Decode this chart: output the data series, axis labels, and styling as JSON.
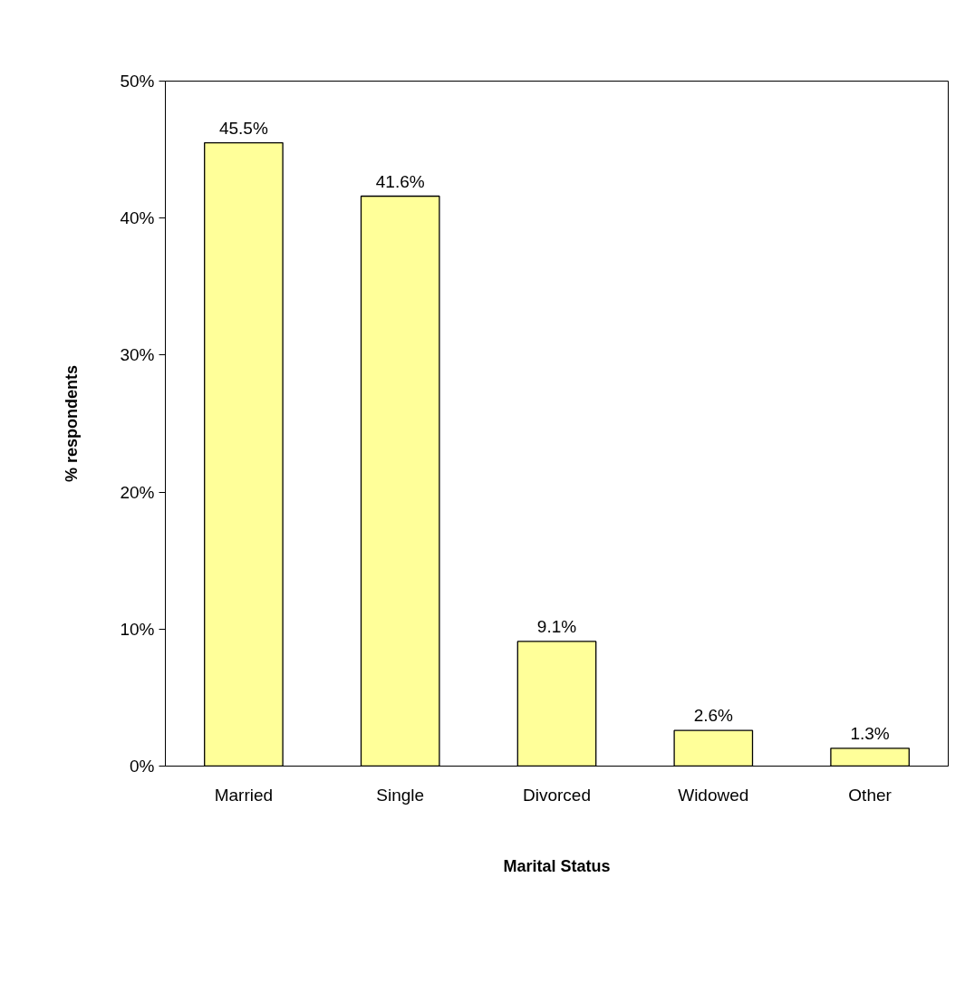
{
  "chart_data": {
    "type": "bar",
    "xlabel": "Marital Status",
    "ylabel": "% respondents",
    "categories": [
      "Married",
      "Single",
      "Divorced",
      "Widowed",
      "Other"
    ],
    "values": [
      45.5,
      41.6,
      9.1,
      2.6,
      1.3
    ],
    "value_labels": [
      "45.5%",
      "41.6%",
      "9.1%",
      "2.6%",
      "1.3%"
    ],
    "color": "#ffff99",
    "ylim": [
      0,
      50
    ],
    "yticks": [
      {
        "value": 0,
        "label": "0%"
      },
      {
        "value": 10,
        "label": "10%"
      },
      {
        "value": 20,
        "label": "20%"
      },
      {
        "value": 30,
        "label": "30%"
      },
      {
        "value": 40,
        "label": "40%"
      },
      {
        "value": 50,
        "label": "50%"
      }
    ],
    "grid": false
  }
}
